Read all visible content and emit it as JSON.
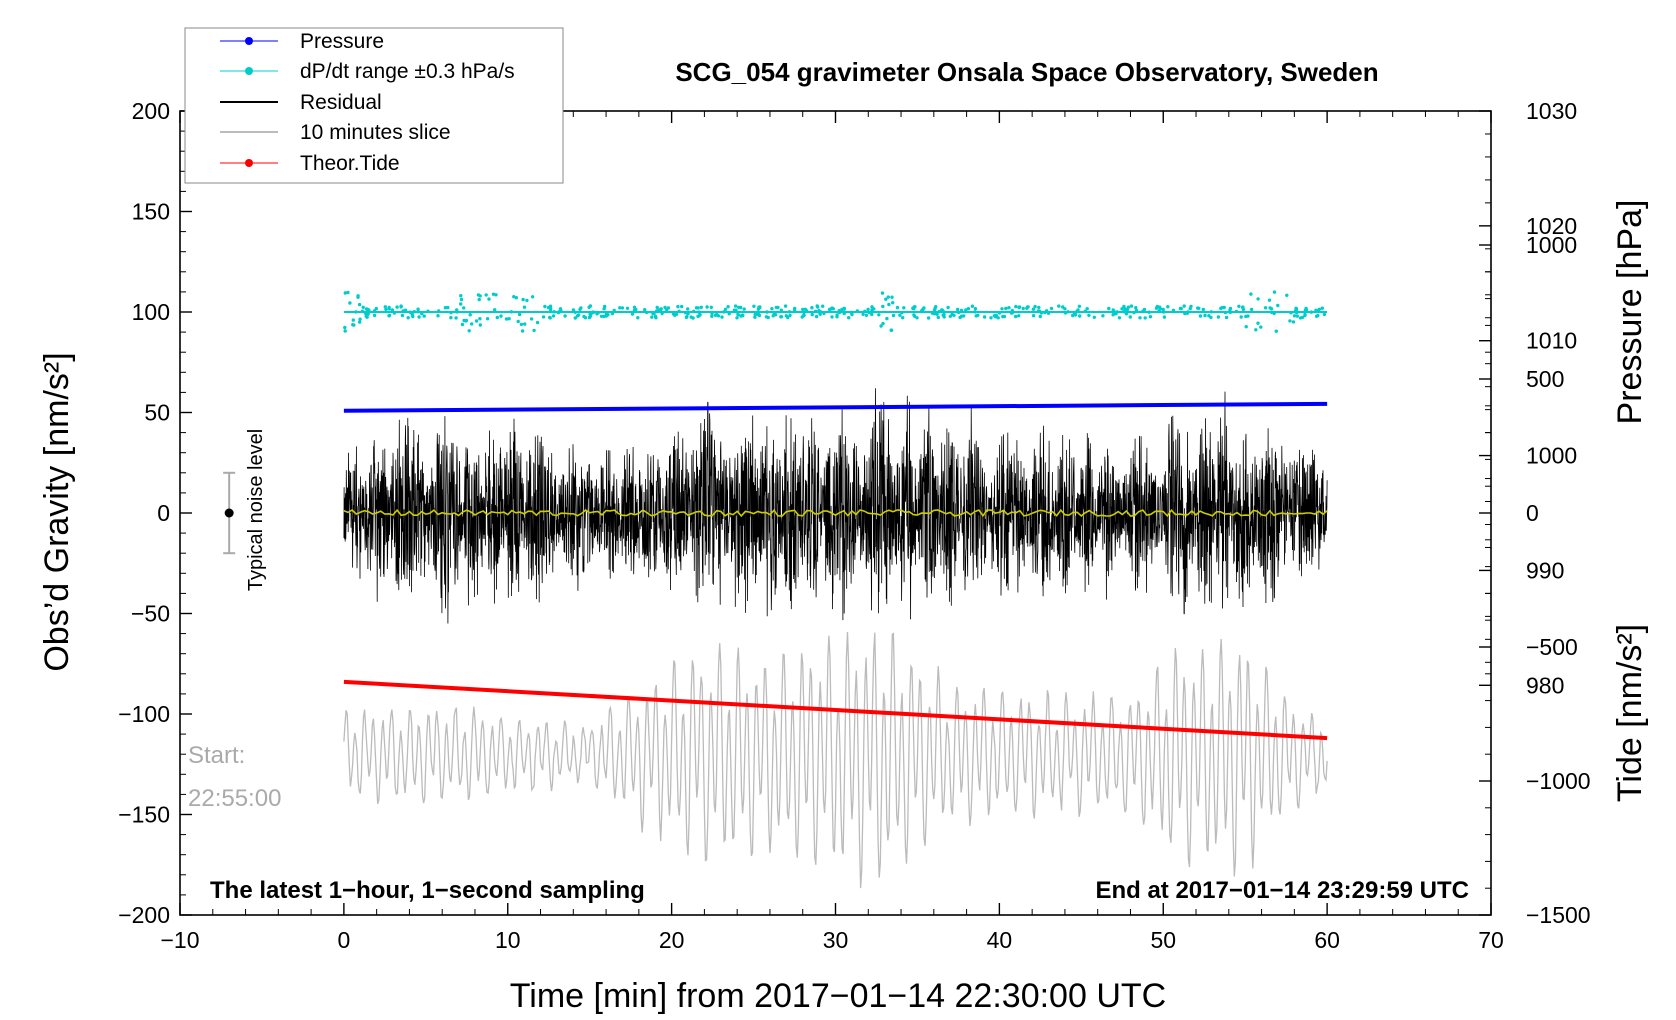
{
  "chart_data": {
    "type": "line",
    "title": "SCG_054 gravimeter Onsala Space Observatory, Sweden",
    "xlabel": "Time [min] from 2017−01−14 22:30:00 UTC",
    "ylabel": "Obs’d Gravity [nm/s²]",
    "y2label": "Pressure [hPa]",
    "y3label": "Tide [nm/s²]",
    "xlim": [
      -10,
      70
    ],
    "ylim": [
      -200,
      200
    ],
    "pressure_lim": [
      960,
      1030
    ],
    "tide_lim": [
      -1500,
      1500
    ],
    "x_ticks": [
      -10,
      0,
      10,
      20,
      30,
      40,
      50,
      60,
      70
    ],
    "x_tick_labels": [
      "−10",
      "0",
      "10",
      "20",
      "30",
      "40",
      "50",
      "60",
      "70"
    ],
    "y_ticks": [
      200,
      150,
      100,
      50,
      0,
      -50,
      -100,
      -150,
      -200
    ],
    "y_tick_labels": [
      "200",
      "150",
      "100",
      "50",
      "0",
      "−50",
      "−100",
      "−150",
      "−200"
    ],
    "pressure_ticks": [
      1030,
      1020,
      1010,
      1000,
      990,
      980
    ],
    "pressure_tick_labels": [
      "1030",
      "1020",
      "1010",
      "1000",
      "990",
      "980"
    ],
    "tide_ticks": [
      1000,
      500,
      0,
      -500,
      -1000,
      -1500
    ],
    "tide_tick_labels": [
      "1000",
      "500",
      "0",
      "−500",
      "−1000",
      "−1500"
    ],
    "legend_position": "top-left",
    "legend": [
      {
        "label": "Pressure",
        "color": "#0000ff",
        "style": "line-dot"
      },
      {
        "label": "dP/dt range ±0.3 hPa/s",
        "color": "#00cccc",
        "style": "line-dot"
      },
      {
        "label": "Residual",
        "color": "#000000",
        "style": "line"
      },
      {
        "label": "10 minutes slice",
        "color": "#bbbbbb",
        "style": "line"
      },
      {
        "label": "Theor.Tide",
        "color": "#ff0000",
        "style": "line-dot"
      }
    ],
    "series": [
      {
        "name": "Pressure",
        "axis": "pressure",
        "color": "#0000ff",
        "x": [
          0,
          60
        ],
        "values": [
          1003.9,
          1004.5
        ]
      },
      {
        "name": "dP/dt range ±0.3 hPa/s",
        "axis": "gravity",
        "color": "#00cccc",
        "x": [
          0,
          60
        ],
        "values": [
          100,
          100
        ]
      },
      {
        "name": "Residual",
        "axis": "gravity",
        "color": "#000000",
        "x": [
          0,
          60
        ],
        "amplitude_envelope": [
          [
            0,
            35
          ],
          [
            3,
            50
          ],
          [
            9,
            55
          ],
          [
            15,
            35
          ],
          [
            20,
            45
          ],
          [
            23,
            60
          ],
          [
            30,
            55
          ],
          [
            33,
            60
          ],
          [
            40,
            45
          ],
          [
            48,
            40
          ],
          [
            51,
            55
          ],
          [
            54,
            60
          ],
          [
            60,
            35
          ]
        ]
      },
      {
        "name": "Residual (smoothed)",
        "axis": "gravity",
        "color": "#cccc00",
        "x": [
          0,
          60
        ],
        "values": [
          0,
          0
        ]
      },
      {
        "name": "10 minutes slice",
        "axis": "gravity",
        "color": "#bbbbbb",
        "x": [
          0,
          60
        ],
        "baseline": -120,
        "amplitude_envelope": [
          [
            0,
            20
          ],
          [
            5,
            25
          ],
          [
            10,
            20
          ],
          [
            15,
            15
          ],
          [
            19,
            40
          ],
          [
            22,
            55
          ],
          [
            26,
            50
          ],
          [
            30,
            60
          ],
          [
            33,
            65
          ],
          [
            37,
            35
          ],
          [
            42,
            30
          ],
          [
            48,
            30
          ],
          [
            51,
            55
          ],
          [
            55,
            60
          ],
          [
            58,
            25
          ],
          [
            60,
            20
          ]
        ]
      },
      {
        "name": "Theor.Tide",
        "axis": "tide",
        "color": "#ff0000",
        "x": [
          0,
          60
        ],
        "values": [
          -630,
          -840
        ]
      }
    ],
    "noise_marker": {
      "x": -7,
      "center": 0,
      "range": [
        -20,
        20
      ],
      "label": "Typical noise level"
    },
    "annotations": {
      "start_label": "Start:",
      "start_time": "22:55:00",
      "bottom_left": "The latest 1−hour, 1−second sampling",
      "bottom_right": "End at 2017−01−14 23:29:59 UTC"
    }
  }
}
